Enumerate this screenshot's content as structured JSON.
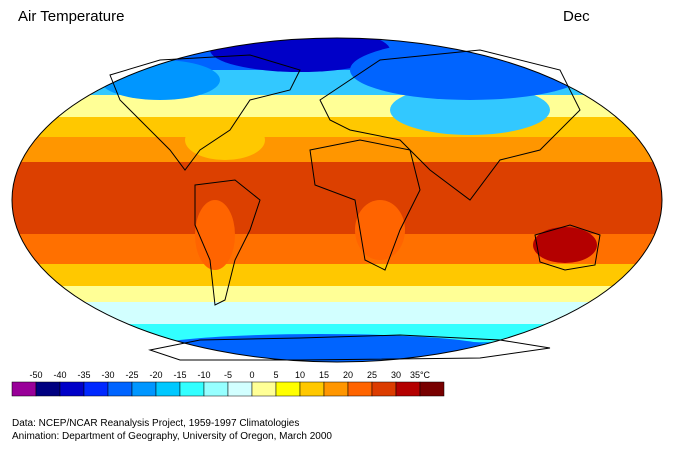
{
  "header": {
    "title": "Air Temperature",
    "month": "Dec"
  },
  "legend": {
    "labels": [
      "-50",
      "-40",
      "-35",
      "-30",
      "-25",
      "-20",
      "-15",
      "-10",
      "-5",
      "0",
      "5",
      "10",
      "15",
      "20",
      "25",
      "30",
      "35°C"
    ],
    "colors": [
      "#990099",
      "#000080",
      "#0000c8",
      "#0028ff",
      "#0064ff",
      "#0096ff",
      "#00c8ff",
      "#32ffff",
      "#96ffff",
      "#d2ffff",
      "#ffff96",
      "#ffff00",
      "#ffc800",
      "#ff9600",
      "#ff6400",
      "#dc3c00",
      "#b40000",
      "#780000"
    ]
  },
  "footer": {
    "line1": "Data:  NCEP/NCAR Reanalysis Project, 1959-1997 Climatologies",
    "line2": "Animation:  Department of Geography, University of Oregon, March 2000"
  }
}
